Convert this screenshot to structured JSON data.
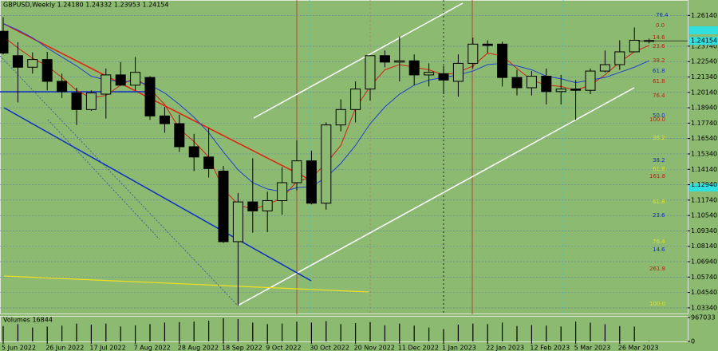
{
  "chart_data": {
    "type": "candlestick",
    "title": "GBPUSD,Weekly  1.24180 1.24332 1.23953 1.24154",
    "categories": [
      "5 Jun 2022",
      null,
      null,
      "26 Jun 2022",
      null,
      null,
      "17 Jul 2022",
      null,
      null,
      "7 Aug 2022",
      null,
      null,
      "28 Aug 2022",
      null,
      null,
      "18 Sep 2022",
      null,
      null,
      "9 Oct 2022",
      null,
      null,
      "30 Oct 2022",
      null,
      null,
      "20 Nov 2022",
      null,
      null,
      "11 Dec 2022",
      null,
      null,
      "1 Jan 2023",
      null,
      null,
      "22 Jan 2023",
      null,
      null,
      "12 Feb 2023",
      null,
      null,
      "5 Mar 2023",
      null,
      null,
      "26 Mar 2023",
      null,
      null
    ],
    "open": [
      1.249,
      1.23,
      1.221,
      1.227,
      1.21,
      1.201,
      1.188,
      1.2,
      1.215,
      1.207,
      1.213,
      1.183,
      1.177,
      1.159,
      1.151,
      1.14,
      1.085,
      1.116,
      1.109,
      1.117,
      1.131,
      1.148,
      1.115,
      1.176,
      1.188,
      1.204,
      1.23,
      1.225,
      1.226,
      1.215,
      1.216,
      1.21,
      1.224,
      1.239,
      1.239,
      1.213,
      1.205,
      1.214,
      1.202,
      1.204,
      1.203,
      1.218,
      1.223,
      1.233,
      1.2418
    ],
    "high": [
      1.26,
      1.2405,
      1.2325,
      1.233,
      1.216,
      1.205,
      1.203,
      1.22,
      1.225,
      1.229,
      1.214,
      1.19,
      1.184,
      1.169,
      1.174,
      1.144,
      1.123,
      1.15,
      1.124,
      1.143,
      1.164,
      1.156,
      1.178,
      1.196,
      1.21,
      1.23,
      1.234,
      1.245,
      1.231,
      1.224,
      1.222,
      1.231,
      1.244,
      1.242,
      1.241,
      1.219,
      1.218,
      1.22,
      1.215,
      1.211,
      1.22,
      1.234,
      1.242,
      1.252,
      1.24332
    ],
    "low": [
      1.231,
      1.1935,
      1.216,
      1.203,
      1.197,
      1.176,
      1.187,
      1.181,
      1.2065,
      1.203,
      1.18,
      1.17,
      1.155,
      1.14,
      1.135,
      1.084,
      1.035,
      1.092,
      1.0925,
      1.106,
      1.125,
      1.114,
      1.11,
      1.171,
      1.178,
      1.195,
      1.221,
      1.21,
      1.207,
      1.206,
      1.2,
      1.198,
      1.22,
      1.232,
      1.206,
      1.199,
      1.199,
      1.192,
      1.192,
      1.18,
      1.2,
      1.217,
      1.219,
      1.233,
      1.23953
    ],
    "close": [
      1.232,
      1.221,
      1.227,
      1.21,
      1.202,
      1.188,
      1.201,
      1.215,
      1.207,
      1.217,
      1.183,
      1.177,
      1.159,
      1.151,
      1.142,
      1.085,
      1.116,
      1.109,
      1.117,
      1.131,
      1.148,
      1.115,
      1.176,
      1.188,
      1.204,
      1.23,
      1.225,
      1.226,
      1.215,
      1.217,
      1.211,
      1.224,
      1.239,
      1.238,
      1.213,
      1.205,
      1.214,
      1.202,
      1.204,
      1.203,
      1.218,
      1.223,
      1.233,
      1.242,
      1.24154
    ],
    "colors": {
      "up": "#000000",
      "down": "#000000",
      "background": "#8cba71"
    },
    "overlays": [
      {
        "color": "#d02010",
        "values": [
          1.245,
          1.236,
          1.228,
          1.222,
          1.213,
          1.203,
          1.197,
          1.199,
          1.207,
          1.213,
          1.204,
          1.192,
          1.173,
          1.163,
          1.151,
          1.126,
          1.114,
          1.11,
          1.114,
          1.119,
          1.132,
          1.135,
          1.146,
          1.16,
          1.189,
          1.206,
          1.219,
          1.223,
          1.221,
          1.219,
          1.215,
          1.217,
          1.222,
          1.232,
          1.23,
          1.22,
          1.211,
          1.207,
          1.206,
          1.203,
          1.207,
          1.215,
          1.225,
          1.233,
          1.238
        ]
      },
      {
        "color": "#2040d0",
        "values": [
          1.255,
          1.25,
          1.244,
          1.236,
          1.229,
          1.222,
          1.214,
          1.211,
          1.21,
          1.21,
          1.207,
          1.201,
          1.192,
          1.182,
          1.17,
          1.155,
          1.141,
          1.131,
          1.126,
          1.124,
          1.127,
          1.128,
          1.135,
          1.146,
          1.16,
          1.177,
          1.19,
          1.2,
          1.207,
          1.211,
          1.213,
          1.215,
          1.218,
          1.223,
          1.224,
          1.222,
          1.219,
          1.214,
          1.212,
          1.209,
          1.211,
          1.213,
          1.217,
          1.221,
          1.226
        ]
      }
    ],
    "ylim": [
      1.029,
      1.2734
    ],
    "yticks": [
      {
        "value": 1.2614,
        "label": "1.26140"
      },
      {
        "value": 1.2374,
        "label": "1.23740"
      },
      {
        "value": 1.2254,
        "label": "1.22540"
      },
      {
        "value": 1.2134,
        "label": "1.21340"
      },
      {
        "value": 1.2014,
        "label": "1.20140"
      },
      {
        "value": 1.1894,
        "label": "1.18940"
      },
      {
        "value": 1.1774,
        "label": "1.17740"
      },
      {
        "value": 1.1654,
        "label": "1.16540"
      },
      {
        "value": 1.1534,
        "label": "1.15340"
      },
      {
        "value": 1.1414,
        "label": "1.14140"
      },
      {
        "value": 1.1294,
        "label": "1.12940"
      },
      {
        "value": 1.1174,
        "label": "1.11740"
      },
      {
        "value": 1.1054,
        "label": "1.10540"
      },
      {
        "value": 1.0934,
        "label": "1.09340"
      },
      {
        "value": 1.0814,
        "label": "1.08140"
      },
      {
        "value": 1.0694,
        "label": "1.06940"
      },
      {
        "value": 1.0574,
        "label": "1.05740"
      },
      {
        "value": 1.0454,
        "label": "1.04540"
      },
      {
        "value": 1.0334,
        "label": "1.03340"
      }
    ],
    "last_price": {
      "value": 1.24154,
      "label": "1.24154"
    },
    "grid": true,
    "annotations": [
      "76.4",
      "0.0",
      "14.6",
      "23.6",
      "38.2",
      "61.8",
      "61.8",
      "76.4",
      "50.0",
      "100.0",
      "38.2",
      "38.2",
      "61.8",
      "161.8",
      "61.8",
      "23.6",
      "76.4",
      "14.6",
      "261.8",
      "100.0"
    ],
    "volume": {
      "title": "Volumes 16844",
      "color": "#000000",
      "values": [
        620000,
        700000,
        560000,
        600000,
        640000,
        720000,
        680000,
        720000,
        600000,
        650000,
        700000,
        760000,
        780000,
        800000,
        840000,
        940000,
        900000,
        760000,
        700000,
        720000,
        800000,
        760000,
        820000,
        700000,
        740000,
        780000,
        650000,
        720000,
        640000,
        560000,
        500000,
        680000,
        720000,
        700000,
        760000,
        620000,
        660000,
        640000,
        600000,
        800000,
        760000,
        700000,
        620000,
        600000,
        16844
      ],
      "ylim": [
        0,
        967033
      ],
      "yticks": [
        967033,
        0
      ]
    }
  }
}
